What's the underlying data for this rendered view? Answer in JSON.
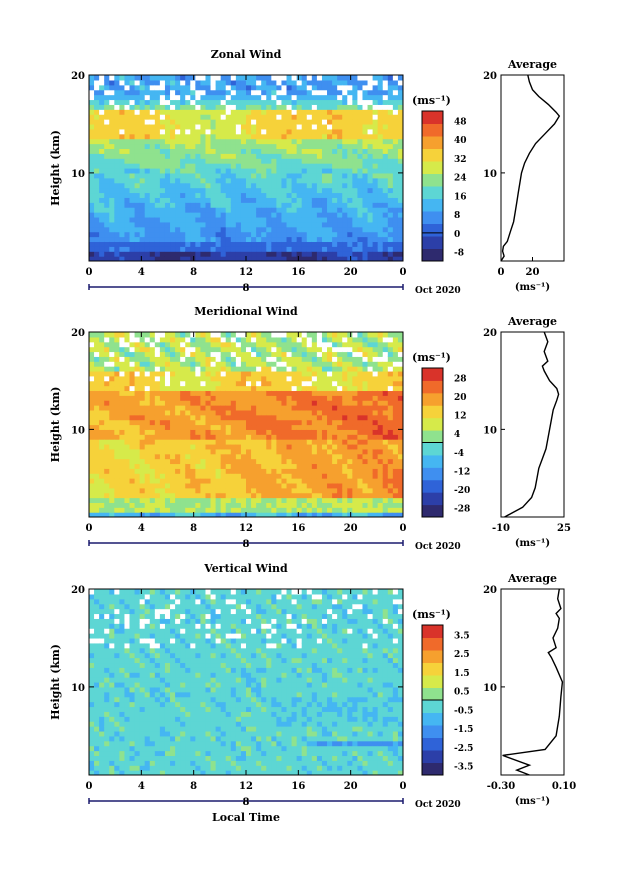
{
  "chart_data": [
    {
      "type": "heatmap",
      "title": "Zonal Wind",
      "ylabel": "Height (km)",
      "xlabel": "",
      "x_ticks": [
        "0",
        "4",
        "8",
        "12",
        "16",
        "20",
        "0"
      ],
      "y_ticks": [
        "10",
        "20"
      ],
      "xlim": [
        0,
        24
      ],
      "ylim": [
        1,
        20
      ],
      "date_label": "Oct 2020",
      "day_label": "8",
      "colorbar": {
        "unit": "(ms⁻¹)",
        "ticks": [
          "48",
          "40",
          "32",
          "24",
          "16",
          "8",
          "0",
          "-8"
        ],
        "range": [
          -12,
          52
        ]
      },
      "profile": {
        "title": "Average",
        "x_ticks": [
          "0",
          "20"
        ],
        "xlabel": "(ms⁻¹)",
        "y_ticks": [
          "10",
          "20"
        ],
        "xlim": [
          0,
          40
        ],
        "ylim": [
          1,
          20
        ],
        "points": [
          [
            0,
            1
          ],
          [
            2,
            1.5
          ],
          [
            1,
            2
          ],
          [
            1.5,
            2.5
          ],
          [
            4,
            3
          ],
          [
            6,
            4
          ],
          [
            8,
            5
          ],
          [
            9,
            6
          ],
          [
            10,
            7
          ],
          [
            11,
            8
          ],
          [
            12,
            9
          ],
          [
            13,
            10
          ],
          [
            15,
            11
          ],
          [
            18,
            12
          ],
          [
            22,
            13
          ],
          [
            28,
            14
          ],
          [
            34,
            15
          ],
          [
            37,
            15.8
          ],
          [
            35,
            16.2
          ],
          [
            30,
            17
          ],
          [
            24,
            17.8
          ],
          [
            20,
            18.5
          ],
          [
            18,
            19.3
          ],
          [
            17,
            20
          ]
        ]
      }
    },
    {
      "type": "heatmap",
      "title": "Meridional Wind",
      "ylabel": "Height (km)",
      "xlabel": "",
      "x_ticks": [
        "0",
        "4",
        "8",
        "12",
        "16",
        "20",
        "0"
      ],
      "y_ticks": [
        "10",
        "20"
      ],
      "xlim": [
        0,
        24
      ],
      "ylim": [
        1,
        20
      ],
      "date_label": "Oct 2020",
      "day_label": "8",
      "colorbar": {
        "unit": "(ms⁻¹)",
        "ticks": [
          "28",
          "20",
          "12",
          "4",
          "-4",
          "-12",
          "-20",
          "-28"
        ],
        "range": [
          -32,
          32
        ]
      },
      "profile": {
        "title": "Average",
        "x_ticks": [
          "-10",
          "25"
        ],
        "xlabel": "(ms⁻¹)",
        "y_ticks": [
          "10",
          "20"
        ],
        "xlim": [
          -10,
          25
        ],
        "ylim": [
          1,
          20
        ],
        "points": [
          [
            -8,
            1
          ],
          [
            -3,
            1.5
          ],
          [
            2,
            2
          ],
          [
            7,
            3
          ],
          [
            9,
            4
          ],
          [
            10,
            5
          ],
          [
            11,
            6
          ],
          [
            13,
            7
          ],
          [
            15,
            8
          ],
          [
            16,
            9
          ],
          [
            17,
            10
          ],
          [
            18,
            11
          ],
          [
            19,
            12
          ],
          [
            21,
            13
          ],
          [
            22,
            13.6
          ],
          [
            21,
            14.2
          ],
          [
            17,
            15
          ],
          [
            14,
            16
          ],
          [
            13,
            16.5
          ],
          [
            16,
            17
          ],
          [
            14,
            18
          ],
          [
            16,
            19
          ],
          [
            14,
            20
          ]
        ]
      }
    },
    {
      "type": "heatmap",
      "title": "Vertical Wind",
      "ylabel": "Height (km)",
      "xlabel": "Local Time",
      "x_ticks": [
        "0",
        "4",
        "8",
        "12",
        "16",
        "20",
        "0"
      ],
      "y_ticks": [
        "10",
        "20"
      ],
      "xlim": [
        0,
        24
      ],
      "ylim": [
        1,
        20
      ],
      "date_label": "Oct 2020",
      "day_label": "8",
      "colorbar": {
        "unit": "(ms⁻¹)",
        "ticks": [
          "3.5",
          "2.5",
          "1.5",
          "0.5",
          "-0.5",
          "-1.5",
          "-2.5",
          "-3.5"
        ],
        "range": [
          -4,
          4
        ]
      },
      "profile": {
        "title": "Average",
        "x_ticks": [
          "-0.30",
          "0.10"
        ],
        "xlabel": "(ms⁻¹)",
        "y_ticks": [
          "10",
          "20"
        ],
        "xlim": [
          -0.3,
          0.1
        ],
        "ylim": [
          1,
          20
        ],
        "points": [
          [
            -0.12,
            1
          ],
          [
            -0.2,
            1.5
          ],
          [
            -0.12,
            2
          ],
          [
            -0.29,
            3
          ],
          [
            -0.02,
            3.6
          ],
          [
            0.05,
            5
          ],
          [
            0.07,
            7
          ],
          [
            0.08,
            9
          ],
          [
            0.09,
            10.5
          ],
          [
            0.05,
            12
          ],
          [
            0.02,
            13
          ],
          [
            0.0,
            13.5
          ],
          [
            0.05,
            14
          ],
          [
            0.03,
            15
          ],
          [
            0.06,
            16
          ],
          [
            0.07,
            17
          ],
          [
            0.05,
            17.5
          ],
          [
            0.08,
            18
          ],
          [
            0.06,
            19
          ],
          [
            0.07,
            20
          ]
        ]
      }
    }
  ],
  "colors": {
    "scale": [
      "#2e2a6e",
      "#2c3fa8",
      "#2f63d8",
      "#3f8ff0",
      "#45b6f2",
      "#5dd6d4",
      "#8fe28e",
      "#d6ea4a",
      "#f6d23a",
      "#f6a02e",
      "#f06a2a",
      "#d9332a"
    ]
  }
}
